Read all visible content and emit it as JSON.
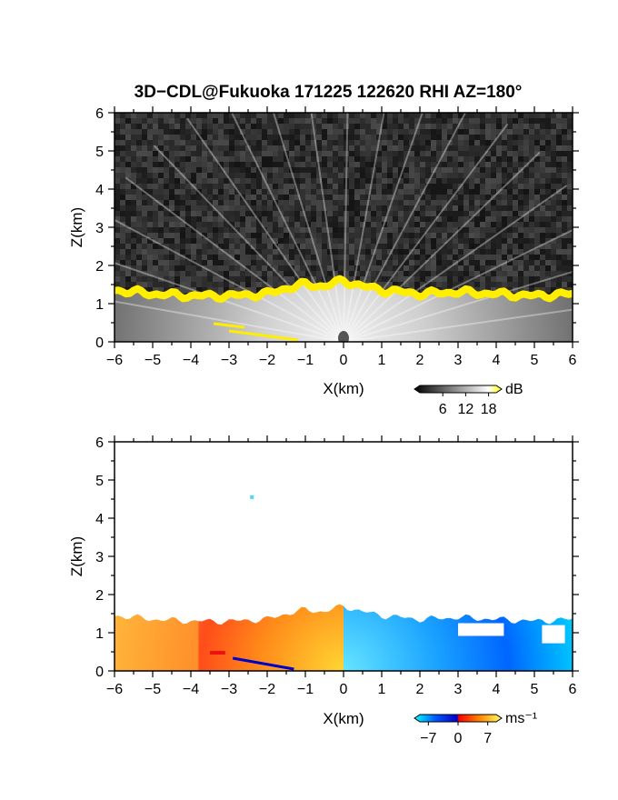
{
  "figure": {
    "title": "3D−CDL@Fukuoka 171225 122620 RHI AZ=180°"
  },
  "chart_data": [
    {
      "type": "heatmap",
      "quantity": "backscatter intensity",
      "xlabel": "X(km)",
      "ylabel": "Z(km)",
      "xlim": [
        -6,
        6
      ],
      "ylim": [
        0,
        6
      ],
      "xticks": [
        "−6",
        "−5",
        "−4",
        "−3",
        "−2",
        "−1",
        "0",
        "1",
        "2",
        "3",
        "4",
        "5",
        "6"
      ],
      "yticks": [
        "0",
        "1",
        "2",
        "3",
        "4",
        "5",
        "6"
      ],
      "colorbar": {
        "unit": "dB",
        "ticks": [
          "6",
          "12",
          "18"
        ],
        "tick_values": [
          6,
          12,
          18
        ],
        "range": [
          0,
          20
        ],
        "colors": [
          "#000000",
          "#ffffff",
          "#ffff00"
        ]
      },
      "boundary_layer_top_km": {
        "x": [
          -6,
          -5,
          -4,
          -3,
          -2,
          -1.5,
          -1,
          -0.5,
          0,
          0.5,
          1,
          2,
          3,
          4,
          5,
          6
        ],
        "z": [
          1.45,
          1.35,
          1.3,
          1.3,
          1.35,
          1.5,
          1.6,
          1.55,
          1.7,
          1.55,
          1.45,
          1.35,
          1.4,
          1.35,
          1.3,
          1.35
        ]
      }
    },
    {
      "type": "heatmap",
      "quantity": "radial velocity",
      "xlabel": "X(km)",
      "ylabel": "Z(km)",
      "xlim": [
        -6,
        6
      ],
      "ylim": [
        0,
        6
      ],
      "xticks": [
        "−6",
        "−5",
        "−4",
        "−3",
        "−2",
        "−1",
        "0",
        "1",
        "2",
        "3",
        "4",
        "5",
        "6"
      ],
      "yticks": [
        "0",
        "1",
        "2",
        "3",
        "4",
        "5",
        "6"
      ],
      "colorbar": {
        "unit": "ms⁻¹",
        "ticks": [
          "−7",
          "0",
          "7"
        ],
        "tick_values": [
          -7,
          0,
          7
        ],
        "range": [
          -9,
          9
        ],
        "colors": [
          "#00ffff",
          "#0055ff",
          "#0000cc",
          "#ff0000",
          "#ff8800",
          "#ffff66"
        ]
      },
      "isolated_echo": {
        "x": -2.4,
        "z": 4.55,
        "velocity": -7
      }
    }
  ]
}
